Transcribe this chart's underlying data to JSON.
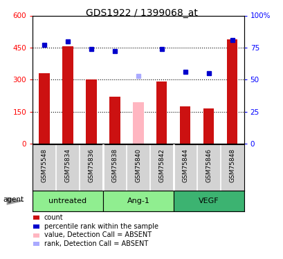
{
  "title": "GDS1922 / 1399068_at",
  "samples": [
    "GSM75548",
    "GSM75834",
    "GSM75836",
    "GSM75838",
    "GSM75840",
    "GSM75842",
    "GSM75844",
    "GSM75846",
    "GSM75848"
  ],
  "bar_values": [
    330,
    455,
    300,
    220,
    195,
    290,
    175,
    165,
    490
  ],
  "bar_absent": [
    false,
    false,
    false,
    false,
    true,
    false,
    false,
    false,
    false
  ],
  "rank_values": [
    77,
    80,
    74,
    72,
    53,
    74,
    56,
    55,
    81
  ],
  "rank_absent": [
    false,
    false,
    false,
    false,
    true,
    false,
    false,
    false,
    false
  ],
  "ylim_left": [
    0,
    600
  ],
  "ylim_right": [
    0,
    100
  ],
  "yticks_left": [
    0,
    150,
    300,
    450,
    600
  ],
  "ytick_labels_left": [
    "0",
    "150",
    "300",
    "450",
    "600"
  ],
  "yticks_right": [
    0,
    25,
    50,
    75,
    100
  ],
  "ytick_labels_right": [
    "0",
    "25",
    "50",
    "75",
    "100%"
  ],
  "bar_color_present": "#CC1111",
  "bar_color_absent": "#FFB6C1",
  "rank_color_present": "#0000CC",
  "rank_color_absent": "#AAAAFF",
  "bar_width": 0.45,
  "background_color": "#ffffff",
  "plot_bg": "#ffffff",
  "label_bg": "#d3d3d3",
  "group_colors": [
    "#90EE90",
    "#90EE90",
    "#3CB371"
  ],
  "group_labels": [
    "untreated",
    "Ang-1",
    "VEGF"
  ],
  "group_ranges": [
    [
      0,
      2
    ],
    [
      3,
      5
    ],
    [
      6,
      8
    ]
  ],
  "agent_label": "agent",
  "legend_items": [
    {
      "label": "count",
      "color": "#CC1111"
    },
    {
      "label": "percentile rank within the sample",
      "color": "#0000CC"
    },
    {
      "label": "value, Detection Call = ABSENT",
      "color": "#FFB6C1"
    },
    {
      "label": "rank, Detection Call = ABSENT",
      "color": "#AAAAFF"
    }
  ]
}
